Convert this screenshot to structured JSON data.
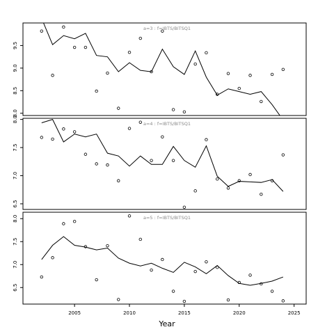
{
  "chart_data": [
    {
      "type": "line_scatter",
      "title": "a=3  :  f=IBTS/BITSQ1",
      "x": [
        2002,
        2003,
        2004,
        2005,
        2006,
        2007,
        2008,
        2009,
        2010,
        2011,
        2012,
        2013,
        2014,
        2015,
        2016,
        2017,
        2018,
        2019,
        2020,
        2021,
        2022,
        2023,
        2024
      ],
      "series": [
        {
          "type": "line",
          "color": "#000000",
          "values": [
            10.1,
            9.52,
            9.72,
            9.65,
            9.77,
            9.28,
            9.25,
            8.92,
            9.12,
            8.95,
            8.92,
            9.42,
            9.03,
            8.86,
            9.38,
            8.8,
            8.4,
            8.54,
            8.48,
            8.42,
            8.48,
            8.19,
            7.85
          ]
        },
        {
          "type": "scatter",
          "color": "#000000",
          "values": [
            9.82,
            8.84,
            9.91,
            9.46,
            9.46,
            8.49,
            8.89,
            8.11,
            9.35,
            9.66,
            8.92,
            9.82,
            8.08,
            8.03,
            9.09,
            9.34,
            8.42,
            8.88,
            8.55,
            8.84,
            8.26,
            8.86,
            8.97
          ]
        }
      ],
      "xlim": [
        2000.3,
        2026.1
      ],
      "ylim": [
        7.95,
        10.0
      ],
      "yticks": [
        {
          "value": 8,
          "label": "8.0"
        },
        8.5,
        {
          "value": 9,
          "label": "9.0"
        },
        9.5
      ]
    },
    {
      "type": "line_scatter",
      "title": "a=4  :  f=IBTS/BITSQ1",
      "x": [
        2002,
        2003,
        2004,
        2005,
        2006,
        2007,
        2008,
        2009,
        2010,
        2011,
        2012,
        2013,
        2014,
        2015,
        2016,
        2017,
        2018,
        2019,
        2020,
        2021,
        2022,
        2023,
        2024
      ],
      "series": [
        {
          "type": "line",
          "color": "#000000",
          "values": [
            7.94,
            8.0,
            7.6,
            7.74,
            7.69,
            7.74,
            7.4,
            7.35,
            7.17,
            7.35,
            7.2,
            7.2,
            7.52,
            7.27,
            7.15,
            7.53,
            6.99,
            6.81,
            6.9,
            6.89,
            6.88,
            6.93,
            6.72
          ]
        },
        {
          "type": "scatter",
          "color": "#000000",
          "values": [
            7.68,
            7.65,
            7.83,
            7.78,
            7.38,
            7.21,
            7.19,
            6.91,
            7.84,
            7.95,
            7.27,
            7.69,
            7.27,
            6.44,
            6.73,
            7.64,
            6.94,
            6.78,
            6.91,
            7.02,
            6.67,
            6.91,
            7.37
          ]
        }
      ],
      "xlim": [
        2000.3,
        2026.1
      ],
      "ylim": [
        6.4,
        8.02
      ],
      "yticks": [
        6.5,
        {
          "value": 7,
          "label": "7.0"
        },
        7.5,
        {
          "value": 8,
          "label": "8.0"
        }
      ]
    },
    {
      "type": "line_scatter",
      "title": "a=5  :  f=IBTS/BITSQ1",
      "xlabel": "Year",
      "x": [
        2002,
        2003,
        2004,
        2005,
        2006,
        2007,
        2008,
        2009,
        2010,
        2011,
        2012,
        2013,
        2014,
        2015,
        2016,
        2017,
        2018,
        2019,
        2020,
        2021,
        2022,
        2023,
        2024
      ],
      "series": [
        {
          "type": "line",
          "color": "#000000",
          "values": [
            7.11,
            7.42,
            7.61,
            7.42,
            7.38,
            7.32,
            7.36,
            7.14,
            7.03,
            6.97,
            7.03,
            6.92,
            6.83,
            7.05,
            6.95,
            6.8,
            6.98,
            6.76,
            6.59,
            6.55,
            6.59,
            6.64,
            6.73
          ]
        },
        {
          "type": "scatter",
          "color": "#000000",
          "values": [
            6.73,
            7.15,
            7.89,
            7.94,
            7.39,
            6.67,
            7.41,
            6.24,
            8.06,
            7.55,
            6.88,
            7.11,
            6.42,
            6.2,
            6.85,
            7.06,
            6.94,
            6.23,
            6.61,
            6.77,
            6.58,
            6.42,
            6.21
          ]
        }
      ],
      "xlim": [
        2000.3,
        2026.1
      ],
      "ylim": [
        6.14,
        8.14
      ],
      "xticks": [
        2005,
        2010,
        2015,
        2020,
        2025
      ],
      "yticks": [
        6.5,
        {
          "value": 7,
          "label": "7.0"
        },
        7.5,
        {
          "value": 8,
          "label": "8.0"
        }
      ]
    }
  ]
}
